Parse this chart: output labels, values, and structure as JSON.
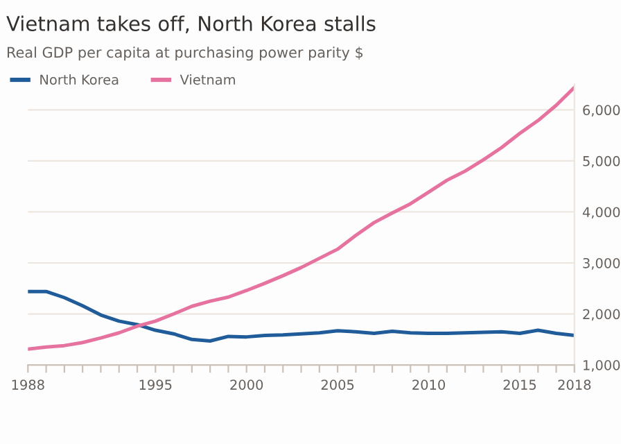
{
  "chart_data": {
    "type": "line",
    "title": "Vietnam takes off, North Korea stalls",
    "subtitle": "Real GDP per capita at purchasing power parity $",
    "x": [
      1988,
      1989,
      1990,
      1991,
      1992,
      1993,
      1994,
      1995,
      1996,
      1997,
      1998,
      1999,
      2000,
      2001,
      2002,
      2003,
      2004,
      2005,
      2006,
      2007,
      2008,
      2009,
      2010,
      2011,
      2012,
      2013,
      2014,
      2015,
      2016,
      2017,
      2018
    ],
    "series": [
      {
        "name": "North Korea",
        "color": "#1f5c99",
        "values": [
          2440,
          2440,
          2320,
          2160,
          1980,
          1860,
          1790,
          1680,
          1610,
          1500,
          1470,
          1560,
          1550,
          1580,
          1590,
          1610,
          1630,
          1670,
          1650,
          1620,
          1660,
          1630,
          1620,
          1620,
          1630,
          1640,
          1650,
          1620,
          1680,
          1620,
          1580
        ]
      },
      {
        "name": "Vietnam",
        "color": "#e6739f",
        "values": [
          1310,
          1350,
          1380,
          1440,
          1530,
          1630,
          1760,
          1860,
          2000,
          2150,
          2250,
          2330,
          2460,
          2600,
          2750,
          2910,
          3090,
          3270,
          3540,
          3790,
          3980,
          4160,
          4390,
          4620,
          4800,
          5020,
          5260,
          5540,
          5790,
          6090,
          6440
        ]
      }
    ],
    "xlim": [
      1988,
      2018
    ],
    "xticks": [
      1988,
      {
        "value": 1989,
        "label": null
      },
      {
        "value": 1990,
        "label": null
      },
      {
        "value": 1991,
        "label": null
      },
      {
        "value": 1992,
        "label": null
      },
      {
        "value": 1993,
        "label": null
      },
      {
        "value": 1994,
        "label": null
      },
      1995,
      {
        "value": 1996,
        "label": null
      },
      {
        "value": 1997,
        "label": null
      },
      {
        "value": 1998,
        "label": null
      },
      {
        "value": 1999,
        "label": null
      },
      2000,
      {
        "value": 2001,
        "label": null
      },
      {
        "value": 2002,
        "label": null
      },
      {
        "value": 2003,
        "label": null
      },
      {
        "value": 2004,
        "label": null
      },
      2005,
      {
        "value": 2006,
        "label": null
      },
      {
        "value": 2007,
        "label": null
      },
      {
        "value": 2008,
        "label": null
      },
      {
        "value": 2009,
        "label": null
      },
      2010,
      {
        "value": 2011,
        "label": null
      },
      {
        "value": 2012,
        "label": null
      },
      {
        "value": 2013,
        "label": null
      },
      {
        "value": 2014,
        "label": null
      },
      2015,
      {
        "value": 2016,
        "label": null
      },
      {
        "value": 2017,
        "label": null
      },
      2018
    ],
    "ylim": [
      1000,
      6500
    ],
    "yticks": [
      {
        "value": 1000,
        "label": "1,000"
      },
      {
        "value": 2000,
        "label": "2,000"
      },
      {
        "value": 3000,
        "label": "3,000"
      },
      {
        "value": 4000,
        "label": "4,000"
      },
      {
        "value": 5000,
        "label": "5,000"
      },
      {
        "value": 6000,
        "label": "6,000"
      }
    ],
    "grid": "y",
    "legend": "top left",
    "marker": "none",
    "line_style": "solid"
  }
}
